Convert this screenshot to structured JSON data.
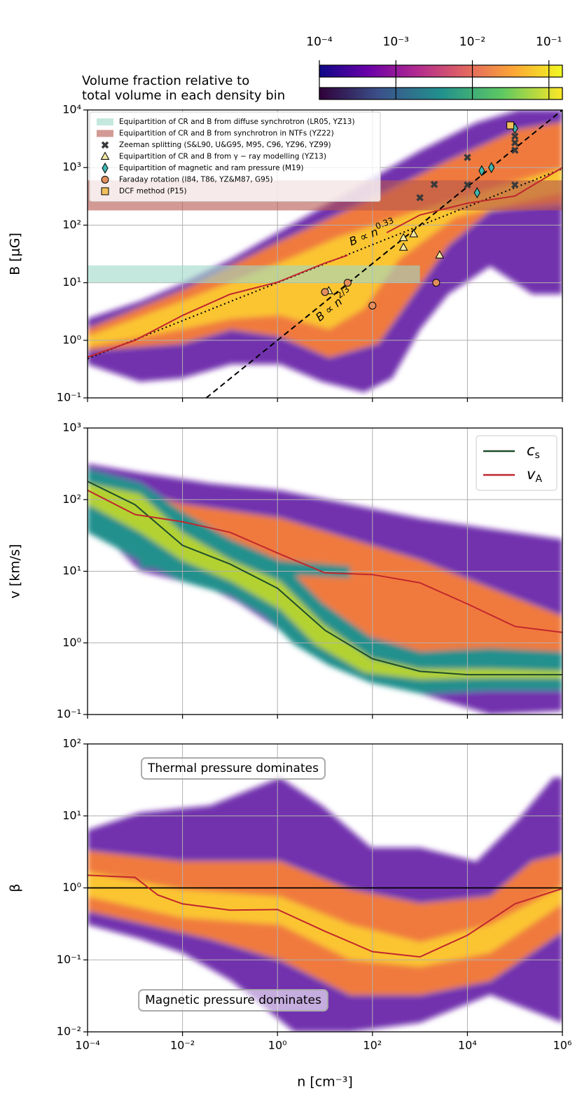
{
  "chart_data": [
    {
      "type": "line",
      "ylabel": "B [μG]",
      "xscale": "log",
      "yscale": "log",
      "grid": true,
      "xlim": [
        0.0001,
        1000000
      ],
      "ylim": [
        0.1,
        10000
      ],
      "xticks": [
        0.0001,
        0.01,
        1,
        100,
        10000,
        1000000
      ],
      "yticks": [
        {
          "value": 0.1,
          "label": "10⁻¹"
        },
        {
          "value": 1,
          "label": "10⁰"
        },
        {
          "value": 10,
          "label": "10¹"
        },
        {
          "value": 100,
          "label": "10²"
        },
        {
          "value": 1000,
          "label": "10³"
        },
        {
          "value": 10000,
          "label": "10⁴"
        }
      ],
      "legend": "upper left",
      "series": [
        {
          "color": "#c0272d",
          "x": [
            0.0001,
            0.001,
            0.01,
            0.1,
            1,
            10,
            30,
            100,
            200,
            1000,
            10000,
            100000,
            1000000
          ],
          "values": [
            0.51,
            1.0,
            2.7,
            6.3,
            10.2,
            22,
            30,
            null,
            74,
            150,
            240,
            320,
            1000
          ]
        }
      ],
      "reference_lines": [
        {
          "label": "B ∝ n",
          "exponent_label": "0.33",
          "style": "dotted",
          "x": [
            0.0001,
            1000000
          ],
          "values": [
            0.48,
            955
          ]
        },
        {
          "label": "B ∝ n",
          "exponent_label": "2/3",
          "style": "dashed",
          "x": [
            0.0316,
            1000000
          ],
          "values": [
            0.1,
            10000
          ]
        }
      ],
      "bands": [
        {
          "name": "Equipartition of CR and B from diffuse synchrotron (LR05, YZ13)",
          "color": "#9fd8c8",
          "x": [
            0.0001,
            1000
          ],
          "values": [
            10,
            20
          ]
        },
        {
          "name": "Equipartition of CR and B from synchrotron in NTFs (YZ22)",
          "color": "#b5574f",
          "x": [
            0.0001,
            1000000
          ],
          "values": [
            180,
            600
          ]
        }
      ],
      "points": [
        {
          "name": "Zeeman splitting (S&L90, U&G95, M95, C96, YZ96, YZ99)",
          "marker": "x",
          "color": "#3a3a3a",
          "x": [
            1000,
            2000,
            10000,
            10000,
            100000,
            100000,
            100000,
            100000
          ],
          "values": [
            300,
            510,
            1500,
            500,
            500,
            3500,
            2700,
            2000
          ]
        },
        {
          "name": "Equipartition of CR and B from γ − ray modelling (YZ13)",
          "marker": "^",
          "color": "#f5e8a3",
          "x": [
            12,
            450,
            450,
            740,
            2600
          ],
          "values": [
            7.2,
            41,
            60,
            70,
            30
          ]
        },
        {
          "name": "Equipartition of magnetic and ram pressure (M19)",
          "marker": "d",
          "color": "#3fb8b0",
          "x": [
            16000,
            20000,
            32000,
            100000
          ],
          "values": [
            365,
            880,
            1000,
            4800
          ]
        },
        {
          "name": "Faraday rotation (I84, T86, YZ&M87, G95)",
          "marker": "o",
          "color": "#e28f5e",
          "x": [
            10,
            30,
            100,
            2200
          ],
          "values": [
            6.9,
            10,
            4,
            10
          ]
        },
        {
          "name": "DCF method (P15)",
          "marker": "s",
          "color": "#f2c05c",
          "x": [
            80000
          ],
          "values": [
            5400
          ]
        }
      ],
      "colorbar": {
        "label": [
          "Volume fraction relative to",
          "total volume in each density bin"
        ],
        "scale": "log",
        "clim": [
          0.0001,
          0.15
        ],
        "cmaps": [
          "plasma",
          "viridis"
        ],
        "ticks": [
          {
            "value": 0.0001,
            "label": "10⁻⁴"
          },
          {
            "value": 0.001,
            "label": "10⁻³"
          },
          {
            "value": 0.01,
            "label": "10⁻²"
          },
          {
            "value": 0.1,
            "label": "10⁻¹"
          }
        ]
      }
    },
    {
      "type": "line",
      "ylabel": "v [km/s]",
      "xscale": "log",
      "yscale": "log",
      "grid": true,
      "xlim": [
        0.0001,
        1000000
      ],
      "ylim": [
        0.1,
        1000
      ],
      "xticks": [
        0.0001,
        0.01,
        1,
        100,
        10000,
        1000000
      ],
      "yticks": [
        {
          "value": 0.1,
          "label": "10⁻¹"
        },
        {
          "value": 1,
          "label": "10⁰"
        },
        {
          "value": 10,
          "label": "10¹"
        },
        {
          "value": 100,
          "label": "10²"
        },
        {
          "value": 1000,
          "label": "10³"
        }
      ],
      "legend": "upper right",
      "series": [
        {
          "name": "c",
          "subscript": "s",
          "color": "#1f4d2b",
          "x": [
            0.0001,
            0.001,
            0.01,
            0.1,
            1,
            10,
            100,
            1000,
            10000,
            100000,
            1000000
          ],
          "values": [
            180,
            85,
            23,
            12.6,
            5.8,
            1.5,
            0.6,
            0.4,
            0.36,
            0.36,
            0.36
          ]
        },
        {
          "name": "v",
          "subscript": "A",
          "color": "#c0272d",
          "x": [
            0.0001,
            0.001,
            0.01,
            0.1,
            1,
            10,
            100,
            1000,
            10000,
            100000,
            1000000
          ],
          "values": [
            135,
            62,
            49,
            35,
            18,
            9.5,
            9,
            6.9,
            3.5,
            1.7,
            1.4
          ]
        }
      ]
    },
    {
      "type": "line",
      "ylabel": "β",
      "xlabel": "n [cm⁻³]",
      "xscale": "log",
      "yscale": "log",
      "grid": true,
      "xlim": [
        0.0001,
        1000000
      ],
      "ylim": [
        0.01,
        100
      ],
      "xticks": [
        {
          "value": 0.0001,
          "label": "10⁻⁴"
        },
        {
          "value": 0.01,
          "label": "10⁻²"
        },
        {
          "value": 1,
          "label": "10⁰"
        },
        {
          "value": 100,
          "label": "10²"
        },
        {
          "value": 10000,
          "label": "10⁴"
        },
        {
          "value": 1000000,
          "label": "10⁶"
        }
      ],
      "yticks": [
        {
          "value": 0.01,
          "label": "10⁻²"
        },
        {
          "value": 0.1,
          "label": "10⁻¹"
        },
        {
          "value": 1,
          "label": "10⁰"
        },
        {
          "value": 10,
          "label": "10¹"
        },
        {
          "value": 100,
          "label": "10²"
        }
      ],
      "hline": 1,
      "series": [
        {
          "color": "#c0272d",
          "x": [
            0.0001,
            0.001,
            0.003,
            0.01,
            0.1,
            1,
            10,
            100,
            1000,
            10000,
            100000,
            1000000
          ],
          "values": [
            1.5,
            1.4,
            0.8,
            0.6,
            0.49,
            0.5,
            0.25,
            0.13,
            0.11,
            0.22,
            0.6,
            0.98
          ]
        }
      ],
      "annotations": [
        "Thermal pressure dominates",
        "Magnetic pressure dominates"
      ]
    }
  ]
}
